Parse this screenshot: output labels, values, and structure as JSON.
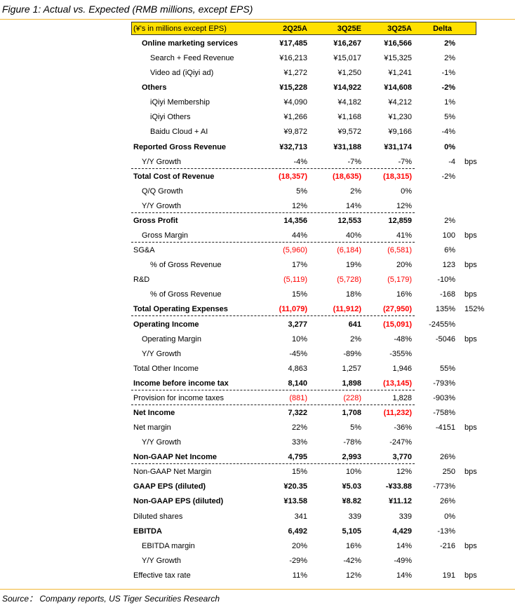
{
  "title": "Figure 1: Actual vs. Expected (RMB millions, except EPS)",
  "source": "Source： Company reports, US Tiger Securities Research",
  "header": {
    "label": "(¥'s in millions except EPS)",
    "cols": [
      "2Q25A",
      "3Q25E",
      "3Q25A",
      "Delta"
    ]
  },
  "colors": {
    "header_bg": "#ffe000",
    "negative": "#ff0000",
    "rule": "#f2b733"
  },
  "rows": [
    {
      "label": "Online marketing services",
      "indent": 1,
      "bold": true,
      "values": [
        "¥17,485",
        "¥16,267",
        "¥16,566",
        "2%"
      ],
      "red": [
        0,
        0,
        0,
        0
      ],
      "unit": "",
      "dash": false
    },
    {
      "label": "Search + Feed Revenue",
      "indent": 2,
      "bold": false,
      "values": [
        "¥16,213",
        "¥15,017",
        "¥15,325",
        "2%"
      ],
      "red": [
        0,
        0,
        0,
        0
      ],
      "unit": "",
      "dash": false
    },
    {
      "label": "Video ad (iQiyi ad)",
      "indent": 2,
      "bold": false,
      "values": [
        "¥1,272",
        "¥1,250",
        "¥1,241",
        "-1%"
      ],
      "red": [
        0,
        0,
        0,
        0
      ],
      "unit": "",
      "dash": false
    },
    {
      "label": "Others",
      "indent": 1,
      "bold": true,
      "values": [
        "¥15,228",
        "¥14,922",
        "¥14,608",
        "-2%"
      ],
      "red": [
        0,
        0,
        0,
        0
      ],
      "unit": "",
      "dash": false
    },
    {
      "label": "iQiyi Membership",
      "indent": 2,
      "bold": false,
      "values": [
        "¥4,090",
        "¥4,182",
        "¥4,212",
        "1%"
      ],
      "red": [
        0,
        0,
        0,
        0
      ],
      "unit": "",
      "dash": false
    },
    {
      "label": "iQiyi Others",
      "indent": 2,
      "bold": false,
      "values": [
        "¥1,266",
        "¥1,168",
        "¥1,230",
        "5%"
      ],
      "red": [
        0,
        0,
        0,
        0
      ],
      "unit": "",
      "dash": false
    },
    {
      "label": "Baidu Cloud + AI",
      "indent": 2,
      "bold": false,
      "values": [
        "¥9,872",
        "¥9,572",
        "¥9,166",
        "-4%"
      ],
      "red": [
        0,
        0,
        0,
        0
      ],
      "unit": "",
      "dash": false
    },
    {
      "label": "Reported Gross Revenue",
      "indent": 0,
      "bold": true,
      "values": [
        "¥32,713",
        "¥31,188",
        "¥31,174",
        "0%"
      ],
      "red": [
        0,
        0,
        0,
        0
      ],
      "unit": "",
      "dash": false
    },
    {
      "label": "Y/Y Growth",
      "indent": 1,
      "bold": false,
      "values": [
        "-4%",
        "-7%",
        "-7%",
        "-4"
      ],
      "red": [
        0,
        0,
        0,
        0
      ],
      "unit": "bps",
      "dash": true
    },
    {
      "label": "Total Cost of Revenue",
      "indent": 0,
      "bold": true,
      "values": [
        "(18,357)",
        "(18,635)",
        "(18,315)",
        "-2%"
      ],
      "red": [
        1,
        1,
        1,
        0
      ],
      "unit": "",
      "dash": false
    },
    {
      "label": "Q/Q Growth",
      "indent": 1,
      "bold": false,
      "values": [
        "5%",
        "2%",
        "0%",
        ""
      ],
      "red": [
        0,
        0,
        0,
        0
      ],
      "unit": "",
      "dash": false
    },
    {
      "label": "Y/Y Growth",
      "indent": 1,
      "bold": false,
      "values": [
        "12%",
        "14%",
        "12%",
        ""
      ],
      "red": [
        0,
        0,
        0,
        0
      ],
      "unit": "",
      "dash": true
    },
    {
      "label": "Gross Profit",
      "indent": 0,
      "bold": true,
      "values": [
        "14,356",
        "12,553",
        "12,859",
        "2%"
      ],
      "red": [
        0,
        0,
        0,
        0
      ],
      "unit": "",
      "dash": false
    },
    {
      "label": "Gross Margin",
      "indent": 1,
      "bold": false,
      "values": [
        "44%",
        "40%",
        "41%",
        "100"
      ],
      "red": [
        0,
        0,
        0,
        0
      ],
      "unit": "bps",
      "dash": true
    },
    {
      "label": "SG&A",
      "indent": 0,
      "bold": false,
      "values": [
        "(5,960)",
        "(6,184)",
        "(6,581)",
        "6%"
      ],
      "red": [
        1,
        1,
        1,
        0
      ],
      "unit": "",
      "dash": false
    },
    {
      "label": "% of Gross Revenue",
      "indent": 2,
      "bold": false,
      "values": [
        "17%",
        "19%",
        "20%",
        "123"
      ],
      "red": [
        0,
        0,
        0,
        0
      ],
      "unit": "bps",
      "dash": false
    },
    {
      "label": "R&D",
      "indent": 0,
      "bold": false,
      "values": [
        "(5,119)",
        "(5,728)",
        "(5,179)",
        "-10%"
      ],
      "red": [
        1,
        1,
        1,
        0
      ],
      "unit": "",
      "dash": false
    },
    {
      "label": "% of Gross Revenue",
      "indent": 2,
      "bold": false,
      "values": [
        "15%",
        "18%",
        "16%",
        "-168"
      ],
      "red": [
        0,
        0,
        0,
        0
      ],
      "unit": "bps",
      "dash": false
    },
    {
      "label": "Total Operating Expenses",
      "indent": 0,
      "bold": true,
      "values": [
        "(11,079)",
        "(11,912)",
        "(27,950)",
        "135%"
      ],
      "red": [
        1,
        1,
        1,
        0
      ],
      "unit": "152%",
      "dash": true
    },
    {
      "label": "Operating Income",
      "indent": 0,
      "bold": true,
      "values": [
        "3,277",
        "641",
        "(15,091)",
        "-2455%"
      ],
      "red": [
        0,
        0,
        1,
        0
      ],
      "unit": "",
      "dash": false
    },
    {
      "label": "Operating Margin",
      "indent": 1,
      "bold": false,
      "values": [
        "10%",
        "2%",
        "-48%",
        "-5046"
      ],
      "red": [
        0,
        0,
        0,
        0
      ],
      "unit": "bps",
      "dash": false
    },
    {
      "label": "Y/Y Growth",
      "indent": 1,
      "bold": false,
      "values": [
        "-45%",
        "-89%",
        "-355%",
        ""
      ],
      "red": [
        0,
        0,
        0,
        0
      ],
      "unit": "",
      "dash": false
    },
    {
      "label": "Total Other Income",
      "indent": 0,
      "bold": false,
      "values": [
        "4,863",
        "1,257",
        "1,946",
        "55%"
      ],
      "red": [
        0,
        0,
        0,
        0
      ],
      "unit": "",
      "dash": false
    },
    {
      "label": "Income before income tax",
      "indent": 0,
      "bold": true,
      "values": [
        "8,140",
        "1,898",
        "(13,145)",
        "-793%"
      ],
      "red": [
        0,
        0,
        1,
        0
      ],
      "unit": "",
      "dash": true
    },
    {
      "label": "Provision for income taxes",
      "indent": 0,
      "bold": false,
      "values": [
        "(881)",
        "(228)",
        "1,828",
        "-903%"
      ],
      "red": [
        1,
        1,
        0,
        0
      ],
      "unit": "",
      "dash": true
    },
    {
      "label": "Net Income",
      "indent": 0,
      "bold": true,
      "values": [
        "7,322",
        "1,708",
        "(11,232)",
        "-758%"
      ],
      "red": [
        0,
        0,
        1,
        0
      ],
      "unit": "",
      "dash": false
    },
    {
      "label": "Net margin",
      "indent": 0,
      "bold": false,
      "values": [
        "22%",
        "5%",
        "-36%",
        "-4151"
      ],
      "red": [
        0,
        0,
        0,
        0
      ],
      "unit": "bps",
      "dash": false
    },
    {
      "label": "Y/Y Growth",
      "indent": 1,
      "bold": false,
      "values": [
        "33%",
        "-78%",
        "-247%",
        ""
      ],
      "red": [
        0,
        0,
        0,
        0
      ],
      "unit": "",
      "dash": false
    },
    {
      "label": "Non-GAAP Net Income",
      "indent": 0,
      "bold": true,
      "values": [
        "4,795",
        "2,993",
        "3,770",
        "26%"
      ],
      "red": [
        0,
        0,
        0,
        0
      ],
      "unit": "",
      "dash": true
    },
    {
      "label": "Non-GAAP Net Margin",
      "indent": 0,
      "bold": false,
      "values": [
        "15%",
        "10%",
        "12%",
        "250"
      ],
      "red": [
        0,
        0,
        0,
        0
      ],
      "unit": "bps",
      "dash": false
    },
    {
      "label": "GAAP EPS (diluted)",
      "indent": 0,
      "bold": true,
      "values": [
        "¥20.35",
        "¥5.03",
        "-¥33.88",
        "-773%"
      ],
      "red": [
        0,
        0,
        0,
        0
      ],
      "unit": "",
      "dash": false
    },
    {
      "label": "Non-GAAP EPS (diluted)",
      "indent": 0,
      "bold": true,
      "values": [
        "¥13.58",
        "¥8.82",
        "¥11.12",
        "26%"
      ],
      "red": [
        0,
        0,
        0,
        0
      ],
      "unit": "",
      "dash": false
    },
    {
      "label": "Diluted shares",
      "indent": 0,
      "bold": false,
      "values": [
        "341",
        "339",
        "339",
        "0%"
      ],
      "red": [
        0,
        0,
        0,
        0
      ],
      "unit": "",
      "dash": false
    },
    {
      "label": "EBITDA",
      "indent": 0,
      "bold": true,
      "values": [
        "6,492",
        "5,105",
        "4,429",
        "-13%"
      ],
      "red": [
        0,
        0,
        0,
        0
      ],
      "unit": "",
      "dash": false
    },
    {
      "label": "EBITDA margin",
      "indent": 1,
      "bold": false,
      "values": [
        "20%",
        "16%",
        "14%",
        "-216"
      ],
      "red": [
        0,
        0,
        0,
        0
      ],
      "unit": "bps",
      "dash": false
    },
    {
      "label": "Y/Y Growth",
      "indent": 1,
      "bold": false,
      "values": [
        "-29%",
        "-42%",
        "-49%",
        ""
      ],
      "red": [
        0,
        0,
        0,
        0
      ],
      "unit": "",
      "dash": false
    },
    {
      "label": "Effective tax rate",
      "indent": 0,
      "bold": false,
      "values": [
        "11%",
        "12%",
        "14%",
        "191"
      ],
      "red": [
        0,
        0,
        0,
        0
      ],
      "unit": "bps",
      "dash": false
    }
  ]
}
